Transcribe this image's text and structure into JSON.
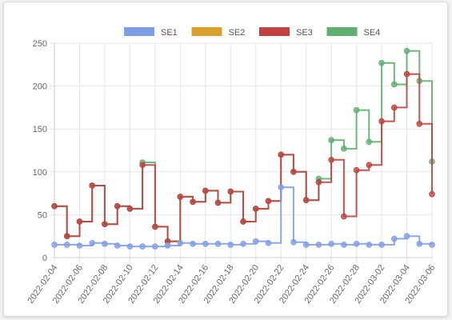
{
  "chart_data": {
    "type": "line",
    "stepped": true,
    "legend_position": "top",
    "grid": true,
    "ylim": [
      0,
      250
    ],
    "y_ticks": [
      "0",
      "50",
      "100",
      "150",
      "200",
      "250"
    ],
    "x_tick_labels": [
      "2022-02-04",
      "2022-02-06",
      "2022-02-08",
      "2022-02-10",
      "2022-02-12",
      "2022-02-14",
      "2022-02-16",
      "2022-02-18",
      "2022-02-20",
      "2022-02-22",
      "2022-02-24",
      "2022-02-26",
      "2022-02-28",
      "2022-03-02",
      "2022-03-04",
      "2022-03-06"
    ],
    "x": [
      "2022-02-04",
      "2022-02-05",
      "2022-02-06",
      "2022-02-07",
      "2022-02-08",
      "2022-02-09",
      "2022-02-10",
      "2022-02-11",
      "2022-02-12",
      "2022-02-13",
      "2022-02-14",
      "2022-02-15",
      "2022-02-16",
      "2022-02-17",
      "2022-02-18",
      "2022-02-19",
      "2022-02-20",
      "2022-02-21",
      "2022-02-22",
      "2022-02-23",
      "2022-02-24",
      "2022-02-25",
      "2022-02-26",
      "2022-02-27",
      "2022-02-28",
      "2022-03-01",
      "2022-03-02",
      "2022-03-03",
      "2022-03-04",
      "2022-03-05",
      "2022-03-06"
    ],
    "series": [
      {
        "name": "SE1",
        "color": "#7f9ee8",
        "values": [
          15,
          15,
          14,
          17,
          16,
          14,
          13,
          13,
          13,
          14,
          17,
          16,
          16,
          16,
          15,
          16,
          19,
          17,
          82,
          18,
          15,
          15,
          16,
          15,
          16,
          15,
          15,
          22,
          25,
          16,
          15
        ]
      },
      {
        "name": "SE2",
        "color": "#d8a129",
        "values": [
          null,
          null,
          null,
          null,
          null,
          null,
          null,
          null,
          null,
          null,
          null,
          null,
          null,
          null,
          null,
          null,
          null,
          null,
          null,
          null,
          null,
          null,
          null,
          null,
          null,
          null,
          null,
          null,
          null,
          null,
          null
        ]
      },
      {
        "name": "SE3",
        "color": "#c0413d",
        "values": [
          60,
          25,
          42,
          84,
          39,
          60,
          57,
          108,
          36,
          19,
          71,
          65,
          78,
          64,
          77,
          42,
          57,
          66,
          120,
          100,
          67,
          88,
          114,
          48,
          102,
          108,
          159,
          175,
          214,
          156,
          74
        ]
      },
      {
        "name": "SE4",
        "color": "#5faf70",
        "values": [
          60,
          25,
          42,
          84,
          39,
          60,
          57,
          111,
          36,
          19,
          71,
          65,
          78,
          64,
          77,
          42,
          57,
          66,
          120,
          100,
          67,
          92,
          137,
          127,
          172,
          135,
          227,
          202,
          241,
          206,
          112
        ]
      }
    ]
  }
}
